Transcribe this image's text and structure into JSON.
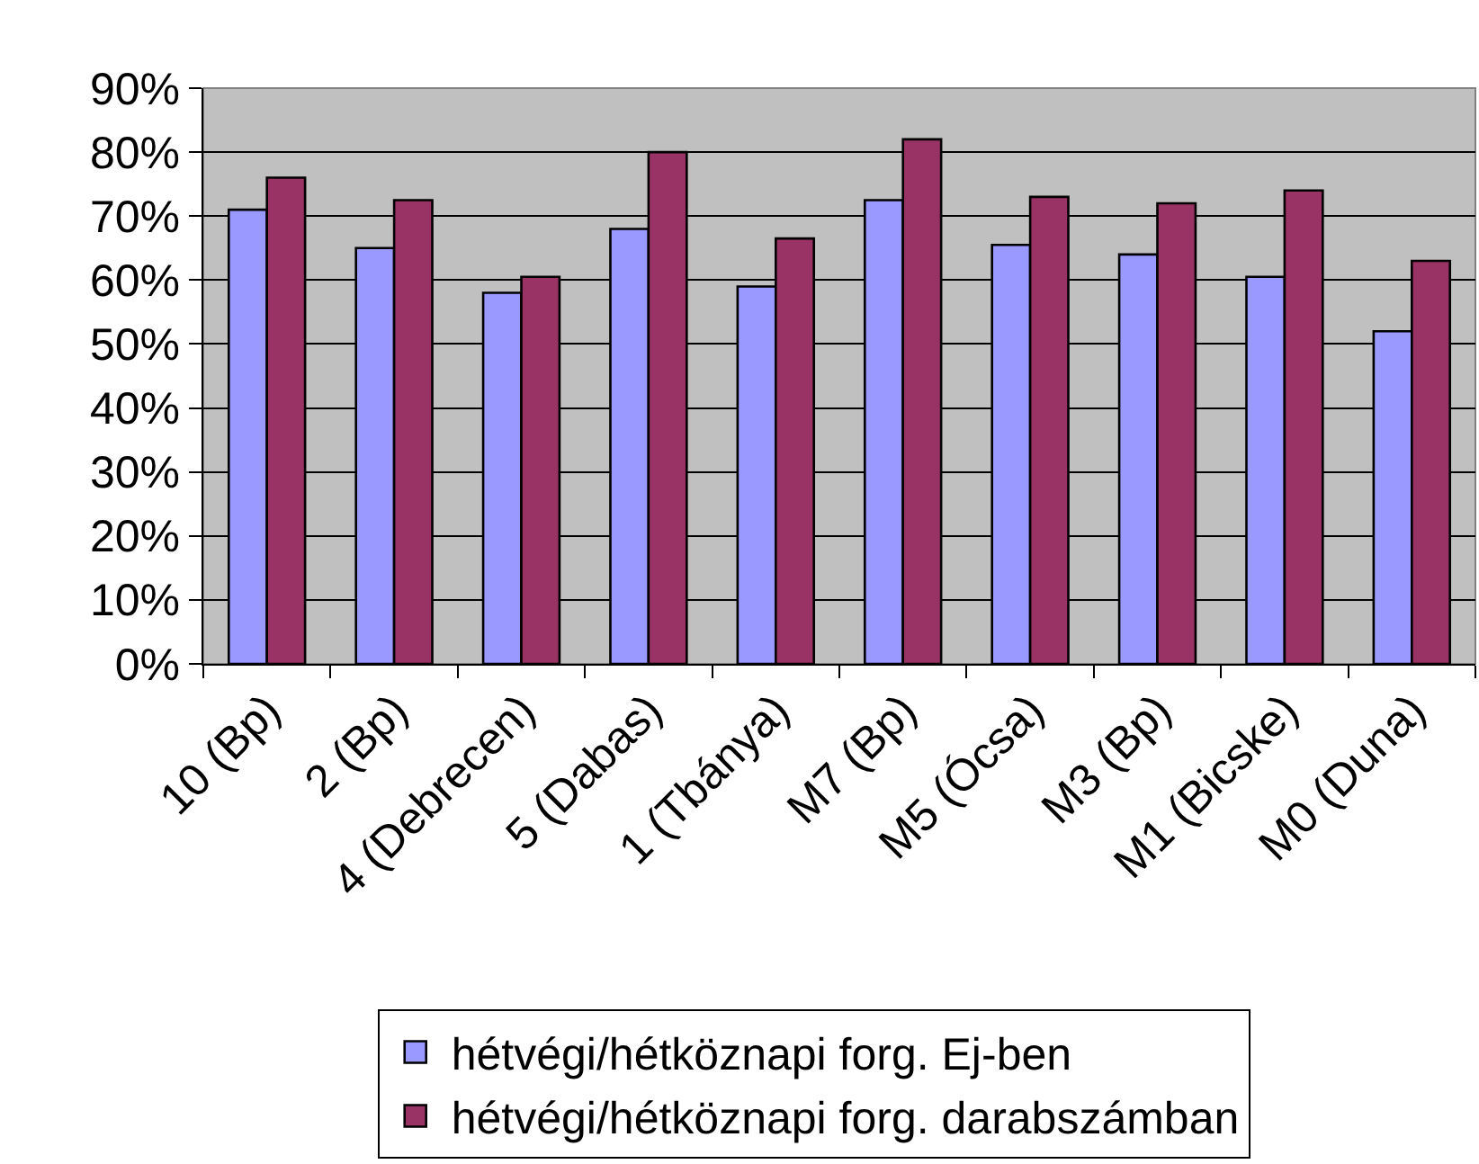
{
  "chart_data": {
    "type": "bar",
    "categories": [
      "10 (Bp)",
      "2 (Bp)",
      "4 (Debrecen)",
      "5 (Dabas)",
      "1 (Tbánya)",
      "M7 (Bp)",
      "M5 (Ócsa)",
      "M3 (Bp)",
      "M1 (Bicske)",
      "M0 (Duna)"
    ],
    "series": [
      {
        "name": "hétvégi/hétköznapi forg. Ej-ben",
        "color": "#9999ff",
        "values": [
          71,
          65,
          58,
          68,
          59,
          72.5,
          65.5,
          64,
          60.5,
          52
        ]
      },
      {
        "name": "hétvégi/hétköznapi forg. darabszámban",
        "color": "#993366",
        "values": [
          76,
          72.5,
          60.5,
          80,
          66.5,
          82,
          73,
          72,
          74,
          63
        ]
      }
    ],
    "ylim": [
      0,
      90
    ],
    "yticks": [
      {
        "value": 0,
        "label": "0%"
      },
      {
        "value": 10,
        "label": "10%"
      },
      {
        "value": 20,
        "label": "20%"
      },
      {
        "value": 30,
        "label": "30%"
      },
      {
        "value": 40,
        "label": "40%"
      },
      {
        "value": 50,
        "label": "50%"
      },
      {
        "value": 60,
        "label": "60%"
      },
      {
        "value": 70,
        "label": "70%"
      },
      {
        "value": 80,
        "label": "80%"
      },
      {
        "value": 90,
        "label": "90%"
      }
    ],
    "grid": "y",
    "legend": "bottom"
  }
}
